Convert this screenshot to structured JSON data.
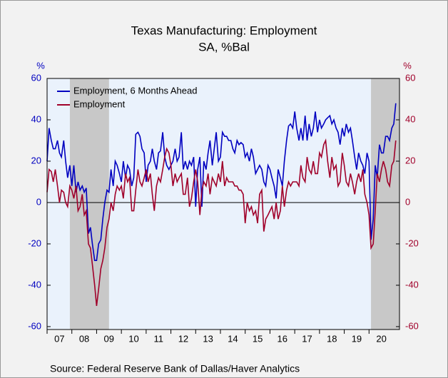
{
  "chart_data": {
    "type": "line",
    "title": "Texas Manufacturing: Employment",
    "subtitle": "SA, %Bal",
    "y_unit": "%",
    "y2_unit": "%",
    "source": "Source:  Federal Reserve Bank of Dallas/Haver Analytics",
    "x": [
      2007.0,
      2007.08,
      2007.17,
      2007.25,
      2007.33,
      2007.42,
      2007.5,
      2007.58,
      2007.67,
      2007.75,
      2007.83,
      2007.92,
      2008.0,
      2008.08,
      2008.17,
      2008.25,
      2008.33,
      2008.42,
      2008.5,
      2008.58,
      2008.67,
      2008.75,
      2008.83,
      2008.92,
      2009.0,
      2009.08,
      2009.17,
      2009.25,
      2009.33,
      2009.42,
      2009.5,
      2009.58,
      2009.67,
      2009.75,
      2009.83,
      2009.92,
      2010.0,
      2010.08,
      2010.17,
      2010.25,
      2010.33,
      2010.42,
      2010.5,
      2010.58,
      2010.67,
      2010.75,
      2010.83,
      2010.92,
      2011.0,
      2011.08,
      2011.17,
      2011.25,
      2011.33,
      2011.42,
      2011.5,
      2011.58,
      2011.67,
      2011.75,
      2011.83,
      2011.92,
      2012.0,
      2012.08,
      2012.17,
      2012.25,
      2012.33,
      2012.42,
      2012.5,
      2012.58,
      2012.67,
      2012.75,
      2012.83,
      2012.92,
      2013.0,
      2013.08,
      2013.17,
      2013.25,
      2013.33,
      2013.42,
      2013.5,
      2013.58,
      2013.67,
      2013.75,
      2013.83,
      2013.92,
      2014.0,
      2014.08,
      2014.17,
      2014.25,
      2014.33,
      2014.42,
      2014.5,
      2014.58,
      2014.67,
      2014.75,
      2014.83,
      2014.92,
      2015.0,
      2015.08,
      2015.17,
      2015.25,
      2015.33,
      2015.42,
      2015.5,
      2015.58,
      2015.67,
      2015.75,
      2015.83,
      2015.92,
      2016.0,
      2016.08,
      2016.17,
      2016.25,
      2016.33,
      2016.42,
      2016.5,
      2016.58,
      2016.67,
      2016.75,
      2016.83,
      2016.92,
      2017.0,
      2017.08,
      2017.17,
      2017.25,
      2017.33,
      2017.42,
      2017.5,
      2017.58,
      2017.67,
      2017.75,
      2017.83,
      2017.92,
      2018.0,
      2018.08,
      2018.17,
      2018.25,
      2018.33,
      2018.42,
      2018.5,
      2018.58,
      2018.67,
      2018.75,
      2018.83,
      2018.92,
      2019.0,
      2019.08,
      2019.17,
      2019.25,
      2019.33,
      2019.42,
      2019.5,
      2019.58,
      2019.67,
      2019.75,
      2019.83,
      2019.92,
      2020.0,
      2020.08,
      2020.17,
      2020.25,
      2020.33,
      2020.42,
      2020.5,
      2020.58,
      2020.67,
      2020.75,
      2020.83,
      2020.92,
      2021.0,
      2021.08
    ],
    "series": [
      {
        "name": "Employment, 6 Months Ahead",
        "color": "#0000c0",
        "values": [
          20,
          36,
          30,
          26,
          26,
          30,
          24,
          22,
          30,
          20,
          12,
          18,
          8,
          18,
          5,
          10,
          6,
          8,
          5,
          7,
          -15,
          -12,
          -20,
          -28,
          -28,
          -20,
          -18,
          -8,
          0,
          6,
          5,
          16,
          8,
          20,
          18,
          14,
          10,
          20,
          12,
          18,
          16,
          8,
          12,
          33,
          34,
          32,
          26,
          24,
          10,
          18,
          20,
          26,
          20,
          16,
          24,
          25,
          34,
          22,
          18,
          16,
          18,
          20,
          26,
          20,
          22,
          34,
          16,
          20,
          16,
          20,
          18,
          22,
          -2,
          16,
          22,
          -2,
          20,
          16,
          24,
          30,
          18,
          26,
          34,
          20,
          22,
          34,
          32,
          32,
          30,
          30,
          26,
          24,
          30,
          28,
          29,
          28,
          22,
          24,
          20,
          26,
          22,
          14,
          16,
          18,
          16,
          10,
          8,
          18,
          16,
          12,
          8,
          2,
          16,
          12,
          8,
          20,
          30,
          37,
          38,
          36,
          44,
          36,
          30,
          36,
          30,
          42,
          30,
          38,
          32,
          36,
          44,
          34,
          40,
          36,
          38,
          40,
          41,
          42,
          38,
          40,
          36,
          34,
          28,
          36,
          32,
          38,
          34,
          36,
          30,
          22,
          16,
          24,
          20,
          18,
          14,
          24,
          20,
          -18,
          -8,
          18,
          12,
          28,
          24,
          24,
          32,
          32,
          30,
          36,
          38,
          48
        ]
      },
      {
        "name": "Employment",
        "color": "#a0002a",
        "values": [
          5,
          16,
          15,
          10,
          16,
          8,
          0,
          6,
          5,
          0,
          -2,
          8,
          6,
          2,
          8,
          -4,
          -2,
          4,
          -6,
          -4,
          -20,
          -22,
          -30,
          -40,
          -50,
          -42,
          -32,
          -28,
          -22,
          -12,
          -8,
          0,
          -4,
          4,
          8,
          6,
          8,
          2,
          14,
          10,
          12,
          -4,
          -4,
          6,
          16,
          10,
          8,
          12,
          16,
          10,
          14,
          4,
          -4,
          8,
          12,
          10,
          16,
          22,
          26,
          24,
          18,
          8,
          14,
          10,
          12,
          14,
          4,
          4,
          12,
          -2,
          2,
          10,
          16,
          10,
          -6,
          6,
          10,
          8,
          14,
          4,
          12,
          10,
          8,
          14,
          10,
          20,
          8,
          12,
          10,
          10,
          10,
          8,
          8,
          6,
          6,
          4,
          -10,
          0,
          -4,
          -2,
          -6,
          -4,
          -10,
          4,
          6,
          -14,
          -8,
          -6,
          -4,
          -2,
          -8,
          0,
          -8,
          -4,
          8,
          -2,
          6,
          10,
          8,
          10,
          10,
          10,
          8,
          18,
          12,
          10,
          22,
          16,
          14,
          20,
          14,
          14,
          24,
          22,
          28,
          30,
          20,
          12,
          22,
          16,
          18,
          8,
          10,
          24,
          18,
          10,
          8,
          14,
          10,
          4,
          10,
          14,
          10,
          16,
          4,
          0,
          -6,
          -22,
          -20,
          -4,
          14,
          10,
          16,
          20,
          16,
          10,
          8,
          18,
          20,
          30
        ]
      }
    ],
    "shaded_regions": [
      [
        2007.92,
        2009.5
      ],
      [
        2020.08,
        2021.23
      ]
    ],
    "xlim": [
      2007,
      2021.23
    ],
    "xticks": [
      {
        "value": 2007,
        "label": "07"
      },
      {
        "value": 2008,
        "label": "08"
      },
      {
        "value": 2009,
        "label": "09"
      },
      {
        "value": 2010,
        "label": "10"
      },
      {
        "value": 2011,
        "label": "11"
      },
      {
        "value": 2012,
        "label": "12"
      },
      {
        "value": 2013,
        "label": "13"
      },
      {
        "value": 2014,
        "label": "14"
      },
      {
        "value": 2015,
        "label": "15"
      },
      {
        "value": 2016,
        "label": "16"
      },
      {
        "value": 2017,
        "label": "17"
      },
      {
        "value": 2018,
        "label": "18"
      },
      {
        "value": 2019,
        "label": "19"
      },
      {
        "value": 2020,
        "label": "20"
      }
    ],
    "ylim": [
      -61.4,
      60
    ],
    "yticks": [
      -60,
      -40,
      -20,
      0,
      20,
      40,
      60
    ],
    "y2lim": [
      -61.4,
      60
    ],
    "y2ticks": [
      -60,
      -40,
      -20,
      0,
      20,
      40,
      60
    ],
    "legend": "upper left"
  }
}
